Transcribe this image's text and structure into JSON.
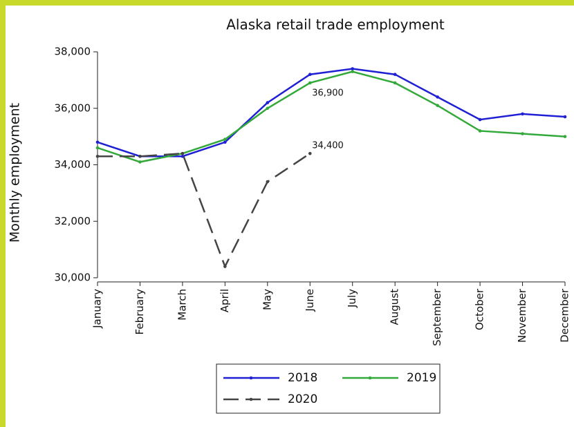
{
  "chart_data": {
    "type": "line",
    "title": "Alaska retail trade employment",
    "y_label": "Monthly employment",
    "categories": [
      "January",
      "February",
      "March",
      "April",
      "May",
      "June",
      "July",
      "August",
      "September",
      "October",
      "November",
      "December"
    ],
    "series": [
      {
        "name": "2018",
        "color": "#1f1fd6",
        "dashed": false,
        "values": [
          34800,
          34300,
          34300,
          34800,
          36200,
          37200,
          37400,
          37200,
          36400,
          35600,
          35800,
          35700
        ]
      },
      {
        "name": "2019",
        "color": "#33a93a",
        "dashed": false,
        "values": [
          34600,
          34100,
          34400,
          34900,
          36000,
          36900,
          37300,
          36900,
          36100,
          35200,
          35100,
          35000
        ],
        "value_labels": [
          null,
          null,
          null,
          null,
          null,
          "36,900",
          null,
          null,
          null,
          null,
          null,
          null
        ]
      },
      {
        "name": "2020",
        "color": "#444444",
        "dashed": true,
        "values": [
          34300,
          34300,
          34400,
          30400,
          33400,
          34400,
          null,
          null,
          null,
          null,
          null,
          null
        ],
        "value_labels": [
          null,
          null,
          null,
          null,
          null,
          "34,400",
          null,
          null,
          null,
          null,
          null,
          null
        ]
      }
    ],
    "ylim": [
      30000,
      38000
    ],
    "yticks": [
      {
        "value": 30000,
        "label": "30,000"
      },
      {
        "value": 32000,
        "label": "32,000"
      },
      {
        "value": 34000,
        "label": "34,000"
      },
      {
        "value": 36000,
        "label": "36,000"
      },
      {
        "value": 38000,
        "label": "38,000"
      }
    ]
  }
}
